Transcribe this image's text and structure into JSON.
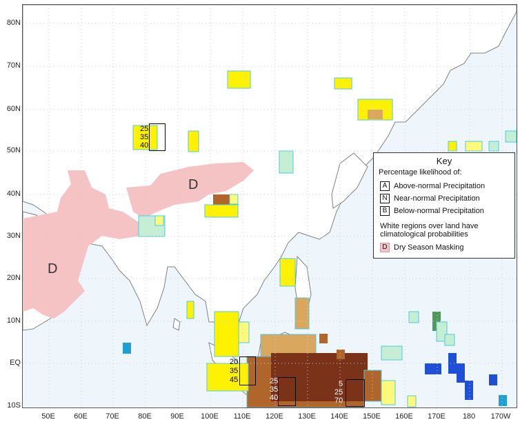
{
  "colors": {
    "ocean": "#eef6fc",
    "ocean_light": "#f7fbfe",
    "land": "#ffffff",
    "coast": "#808080",
    "dry_season": "#f6c3c5",
    "above_light": "#fff200",
    "above_mid": "#fffa7a",
    "near_green": "#c5efd4",
    "below_light": "#d9a85e",
    "below_mid": "#b0662a",
    "below_dark": "#7a3318",
    "blue": "#1e6fd6",
    "cyan_edge": "#4fc9e0"
  },
  "axes": {
    "y_labels": [
      "80N",
      "70N",
      "60N",
      "50N",
      "40N",
      "30N",
      "20N",
      "10N",
      "EQ",
      "10S"
    ],
    "x_labels": [
      "50E",
      "60E",
      "70E",
      "80E",
      "90E",
      "100E",
      "110E",
      "120E",
      "130E",
      "140E",
      "150E",
      "160E",
      "170E",
      "180",
      "170W"
    ]
  },
  "map": {
    "region_letter_asia": "D",
    "region_letter_india": "D"
  },
  "stacks": {
    "siberia": [
      "25",
      "35",
      "40"
    ],
    "borneo": [
      "20",
      "35",
      "45"
    ],
    "indonesia_a": [
      "25",
      "35",
      "40"
    ],
    "indonesia_b": [
      "5",
      "25",
      "70"
    ]
  },
  "key": {
    "title": "Key",
    "subtitle": "Percentage likelihood of:",
    "rows": [
      {
        "letter": "A",
        "label": "Above-normal Precipitation"
      },
      {
        "letter": "N",
        "label": "Near-normal Precipitation"
      },
      {
        "letter": "B",
        "label": "Below-normal Precipitation"
      }
    ],
    "note": "White regions over land have climatological probabilities",
    "dry_letter": "D",
    "dry_label": "Dry Season Masking"
  }
}
